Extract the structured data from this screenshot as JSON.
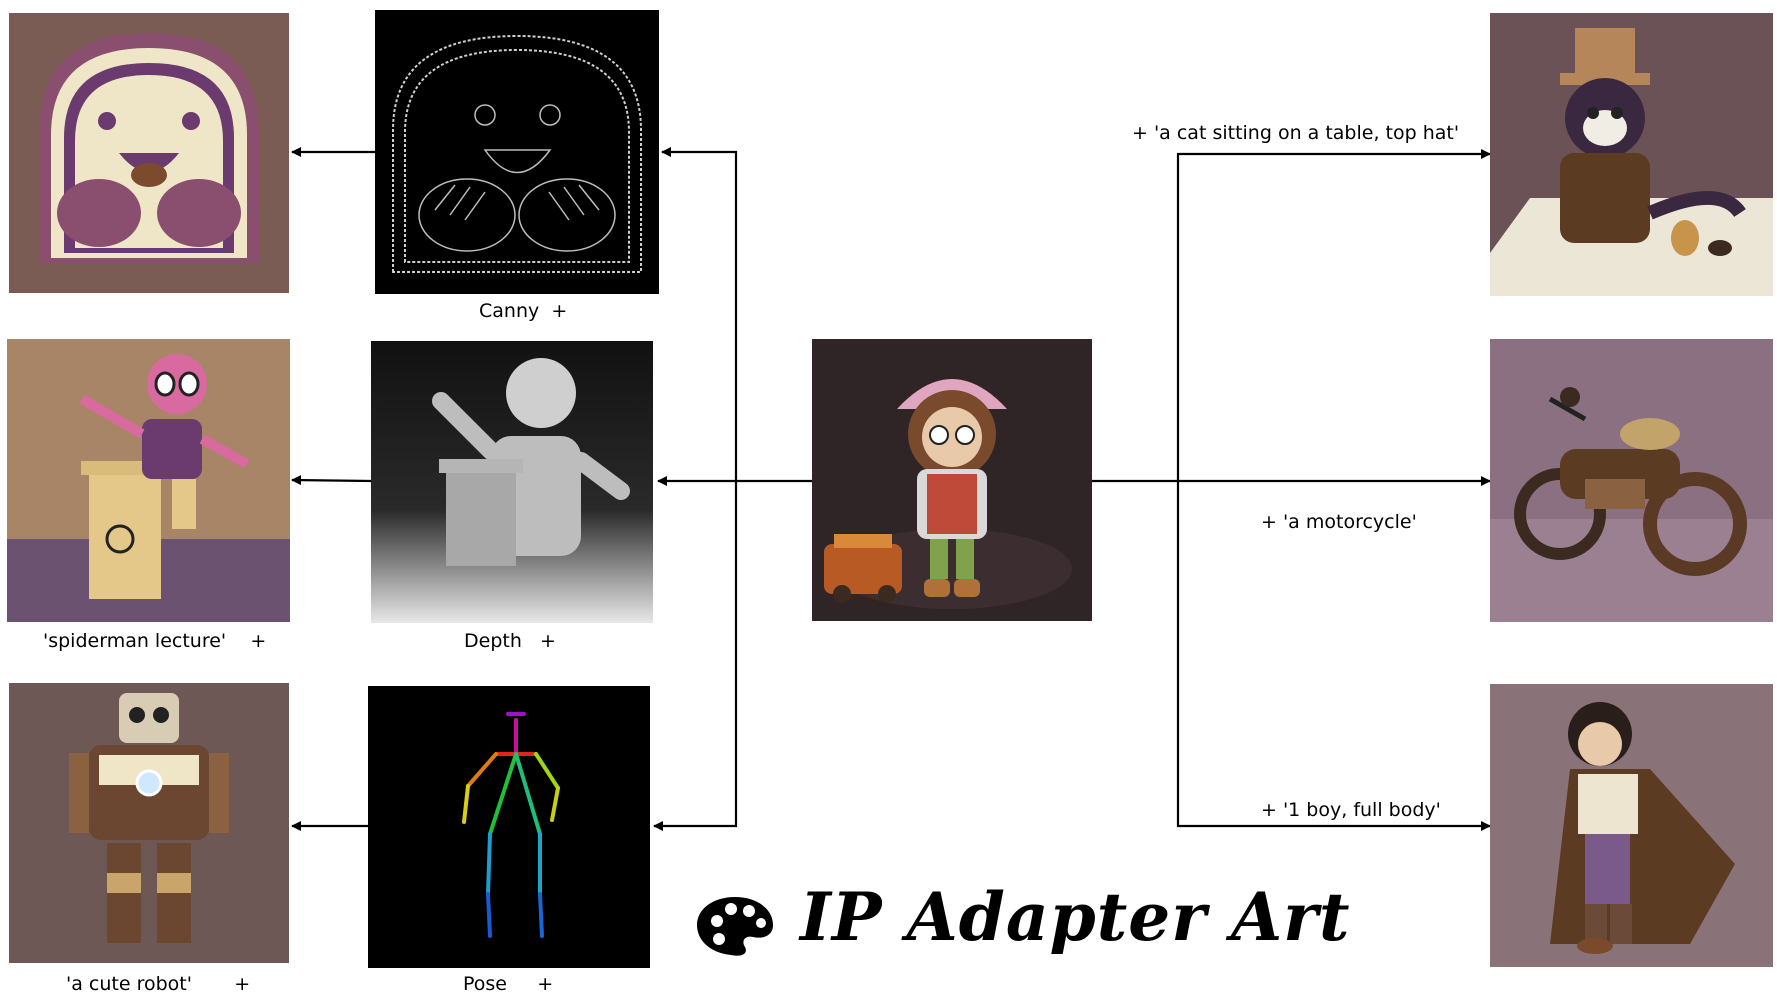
{
  "title": "IP Adapter Art",
  "labels": {
    "canny": "Canny",
    "depth": "Depth",
    "pose": "Pose",
    "spiderman": "'spiderman lecture'",
    "robot": "'a cute robot'",
    "cat": "+ 'a cat sitting on a table, top hat'",
    "motorcycle": "+ 'a motorcycle'",
    "boy": "+ '1 boy, full body'",
    "plus": "+"
  },
  "icons": {
    "palette": "palette-icon"
  },
  "colors": {
    "background": "#ffffff",
    "line": "#000000",
    "crochet_purple": "#6b3a6e",
    "crochet_cream": "#efe6c8",
    "backdrop_brown": "#6f5450"
  }
}
